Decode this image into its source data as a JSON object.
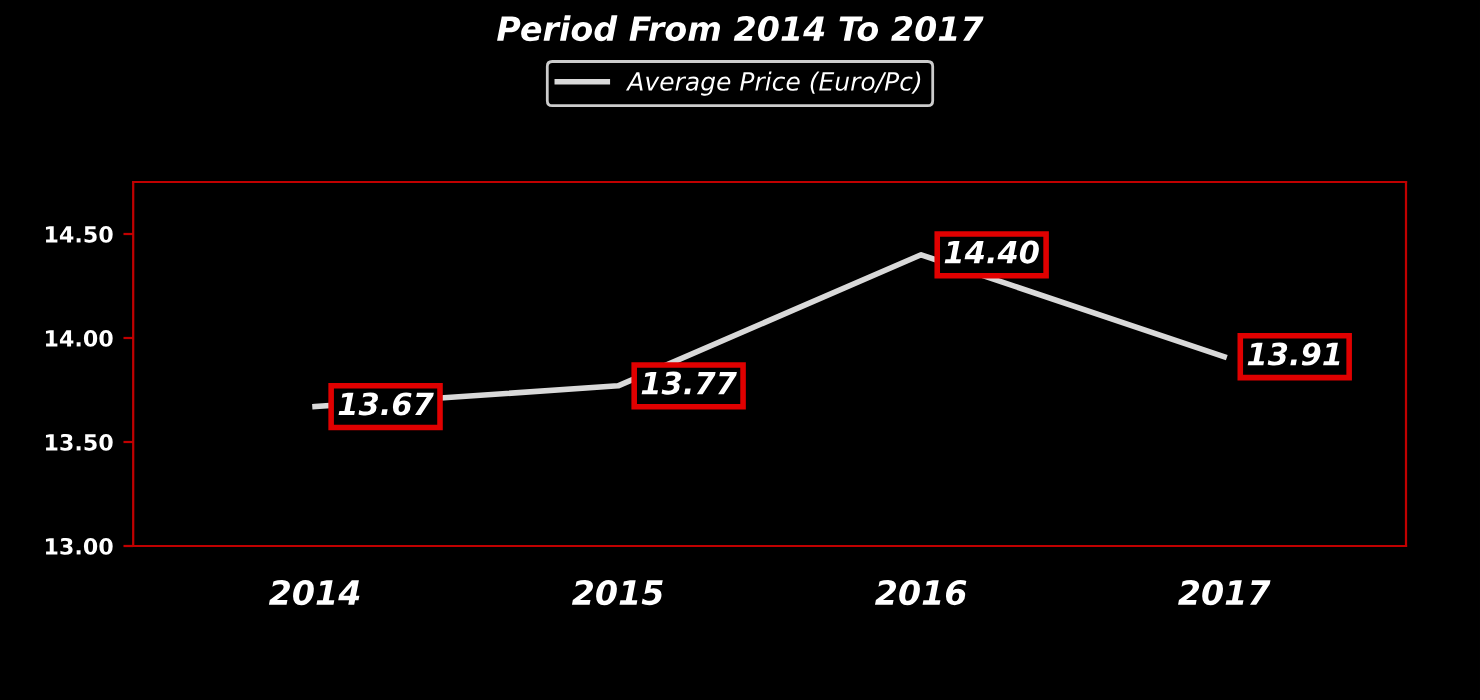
{
  "chart_data": {
    "type": "line",
    "title": "Period From 2014 To 2017",
    "categories": [
      "2014",
      "2015",
      "2016",
      "2017"
    ],
    "series": [
      {
        "name": "Average Price (Euro/Pc)",
        "color": "#d9d9d9",
        "values": [
          13.67,
          13.77,
          14.4,
          13.91
        ],
        "value_labels": [
          "13.67",
          "13.77",
          "14.40",
          "13.91"
        ]
      }
    ],
    "ylim": [
      13.0,
      14.75
    ],
    "yticks": [
      {
        "value": 13.0,
        "label": "13.00"
      },
      {
        "value": 13.5,
        "label": "13.50"
      },
      {
        "value": 14.0,
        "label": "14.00"
      },
      {
        "value": 14.5,
        "label": "14.50"
      }
    ],
    "legend": "top",
    "grid": false,
    "marker": "none",
    "line_style": "solid"
  }
}
